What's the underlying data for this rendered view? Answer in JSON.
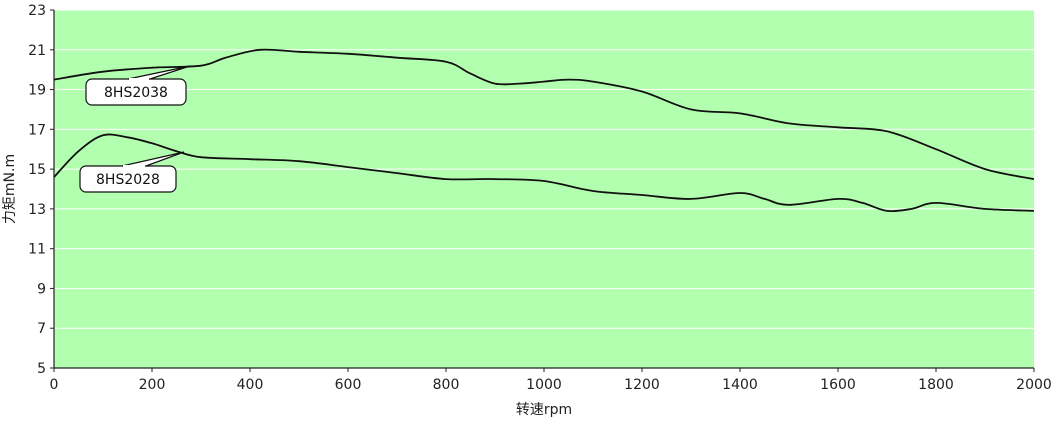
{
  "chart_data": {
    "type": "line",
    "title": "",
    "xlabel": "转速rpm",
    "ylabel": "力矩mN.m",
    "xlim": [
      0,
      2000
    ],
    "ylim": [
      5,
      23
    ],
    "x_ticks": [
      0,
      200,
      400,
      600,
      800,
      1000,
      1200,
      1400,
      1600,
      1800,
      2000
    ],
    "y_ticks": [
      5,
      7,
      9,
      11,
      13,
      15,
      17,
      19,
      21,
      23
    ],
    "grid": "horizontal",
    "legend": "callouts",
    "colors": {
      "plot_background": "#b3ffb0",
      "line": "#111111",
      "grid": "#ffffff"
    },
    "series": [
      {
        "name": "8HS2038",
        "points": [
          [
            0,
            19.5
          ],
          [
            100,
            19.9
          ],
          [
            200,
            20.1
          ],
          [
            300,
            20.2
          ],
          [
            350,
            20.6
          ],
          [
            420,
            21.0
          ],
          [
            500,
            20.9
          ],
          [
            600,
            20.8
          ],
          [
            700,
            20.6
          ],
          [
            800,
            20.4
          ],
          [
            850,
            19.8
          ],
          [
            900,
            19.3
          ],
          [
            950,
            19.3
          ],
          [
            1000,
            19.4
          ],
          [
            1050,
            19.5
          ],
          [
            1100,
            19.4
          ],
          [
            1200,
            18.9
          ],
          [
            1300,
            18.0
          ],
          [
            1400,
            17.8
          ],
          [
            1500,
            17.3
          ],
          [
            1600,
            17.1
          ],
          [
            1700,
            16.9
          ],
          [
            1800,
            16.0
          ],
          [
            1900,
            15.0
          ],
          [
            2000,
            14.5
          ]
        ]
      },
      {
        "name": "8HS2028",
        "points": [
          [
            0,
            14.6
          ],
          [
            50,
            15.9
          ],
          [
            100,
            16.7
          ],
          [
            150,
            16.6
          ],
          [
            200,
            16.3
          ],
          [
            250,
            15.9
          ],
          [
            300,
            15.6
          ],
          [
            400,
            15.5
          ],
          [
            500,
            15.4
          ],
          [
            600,
            15.1
          ],
          [
            700,
            14.8
          ],
          [
            800,
            14.5
          ],
          [
            900,
            14.5
          ],
          [
            1000,
            14.4
          ],
          [
            1100,
            13.9
          ],
          [
            1200,
            13.7
          ],
          [
            1300,
            13.5
          ],
          [
            1400,
            13.8
          ],
          [
            1450,
            13.5
          ],
          [
            1500,
            13.2
          ],
          [
            1600,
            13.5
          ],
          [
            1650,
            13.3
          ],
          [
            1700,
            12.9
          ],
          [
            1750,
            13.0
          ],
          [
            1800,
            13.3
          ],
          [
            1900,
            13.0
          ],
          [
            2000,
            12.9
          ]
        ]
      }
    ]
  }
}
